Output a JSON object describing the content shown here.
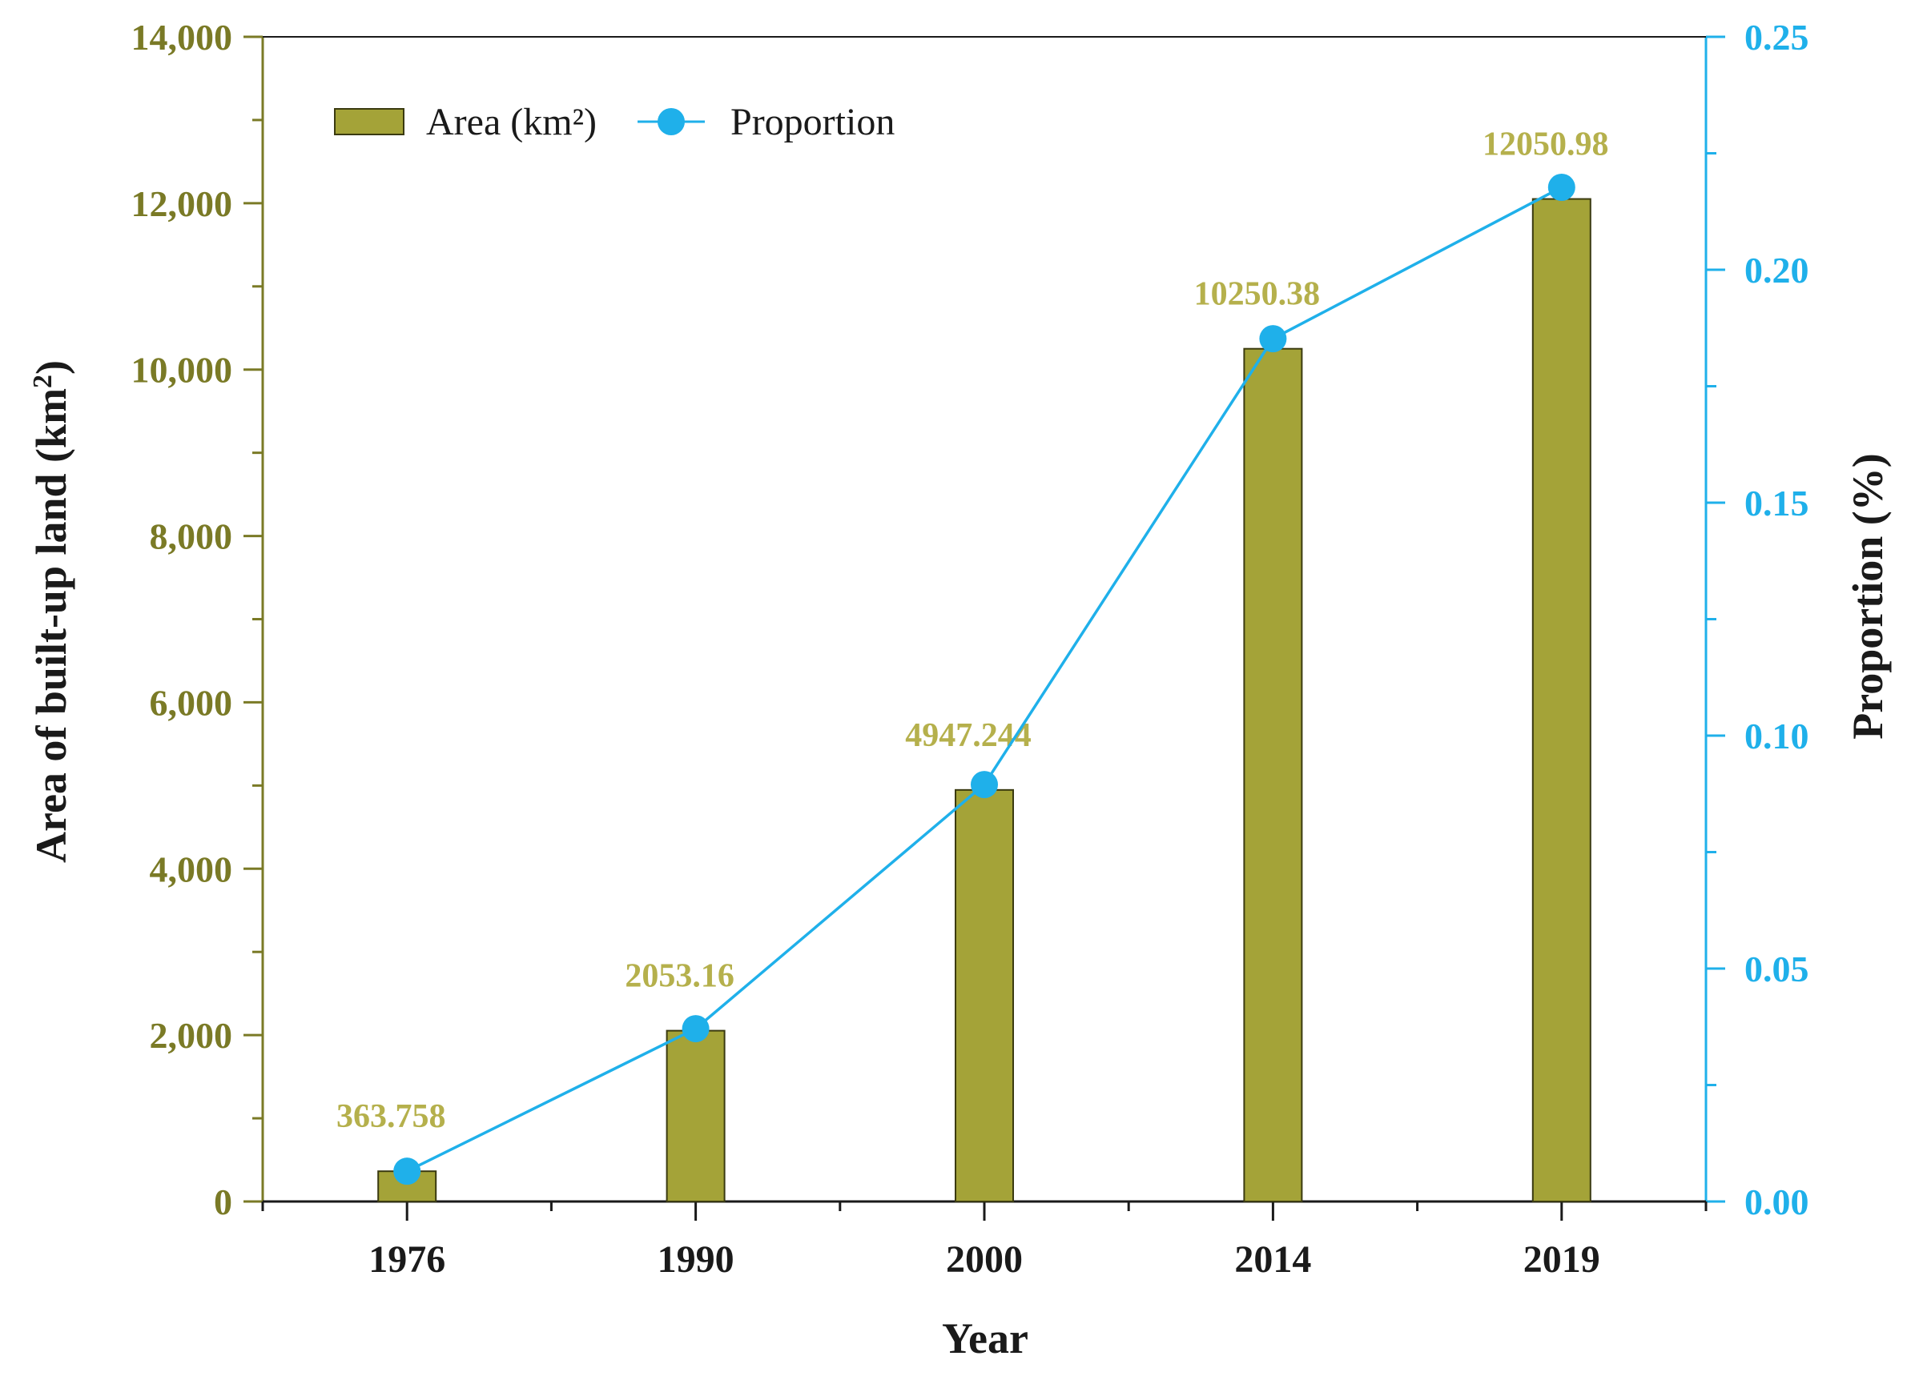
{
  "chart_data": {
    "type": "bar",
    "title": "",
    "categories": [
      "1976",
      "1990",
      "2000",
      "2014",
      "2019"
    ],
    "series": [
      {
        "name": "Area (km²)",
        "type": "bar",
        "axis": "left",
        "values": [
          363.758,
          2053.16,
          4947.244,
          10250.38,
          12050.98
        ],
        "labels": [
          "363.758",
          "2053.16",
          "4947.244",
          "10250.38",
          "12050.98"
        ],
        "color": "#a4a338"
      },
      {
        "name": "Proportion",
        "type": "line",
        "axis": "right",
        "values": [
          0.0065,
          0.0371,
          0.0895,
          0.1852,
          0.2177
        ],
        "color": "#1fb0ea"
      }
    ],
    "xlabel": "Year",
    "ylabel_left_prefix": "Area of built-up land (km",
    "ylabel_left_sup": "2",
    "ylabel_left_suffix": ")",
    "ylabel_right": "Proportion (%)",
    "ylim_left": [
      0,
      14000
    ],
    "ylim_right": [
      0,
      0.25
    ],
    "yticks_left": [
      "0",
      "2,000",
      "4,000",
      "6,000",
      "8,000",
      "10,000",
      "12,000",
      "14,000"
    ],
    "yticks_right": [
      "0.00",
      "0.05",
      "0.10",
      "0.15",
      "0.20",
      "0.25"
    ],
    "legend_position": "top-left",
    "left_axis_color": "#7a7a26",
    "right_axis_color": "#1fb0ea"
  }
}
